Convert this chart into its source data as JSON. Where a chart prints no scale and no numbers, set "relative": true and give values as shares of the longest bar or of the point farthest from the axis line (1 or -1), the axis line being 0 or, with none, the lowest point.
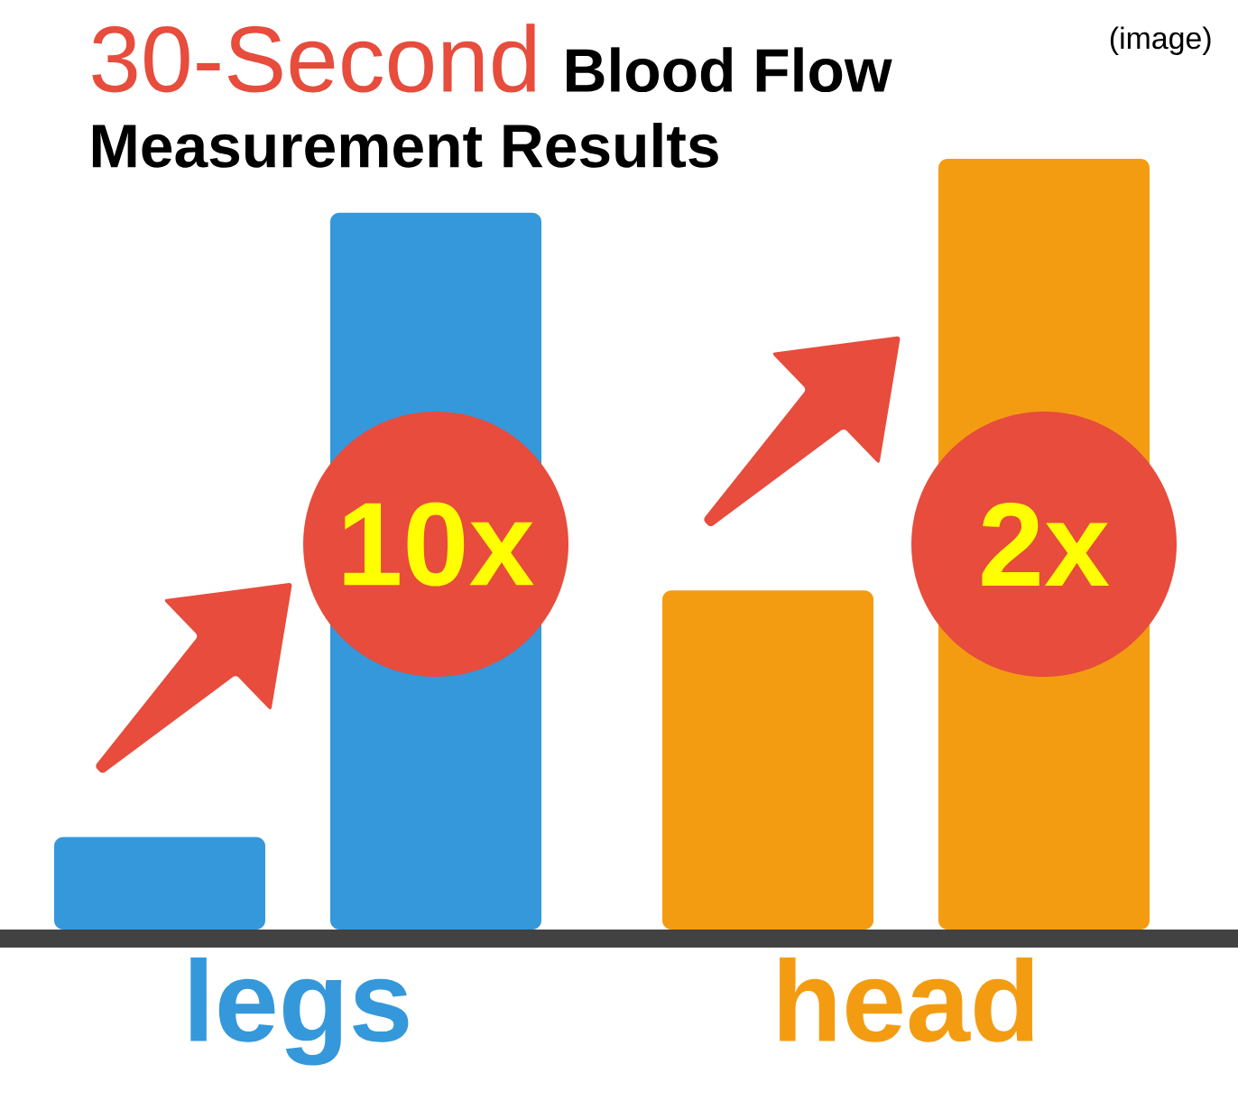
{
  "chart_data": {
    "type": "bar",
    "title": "30-Second",
    "subtitle": "Blood Flow Measurement Results",
    "categories": [
      "legs",
      "head"
    ],
    "relative": true,
    "series": [
      {
        "colors": [
          "#3498db",
          "#f39c12"
        ],
        "values": [
          0.12,
          0.44
        ]
      },
      {
        "colors": [
          "#3498db",
          "#f39c12"
        ],
        "values": [
          0.93,
          1
        ]
      }
    ],
    "annotations": [
      "10x",
      "2x",
      "(image)"
    ]
  }
}
